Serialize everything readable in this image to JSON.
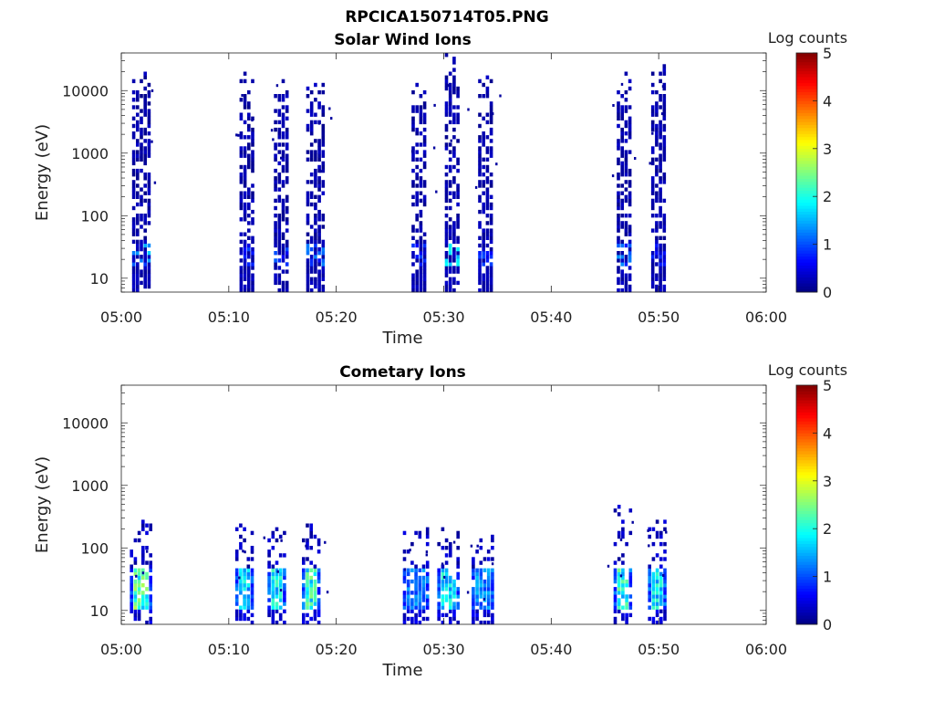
{
  "figure_title": "RPCICA150714T05.PNG",
  "colormap": "jet",
  "chart_data": [
    {
      "type": "heatmap",
      "title": "Solar Wind Ions",
      "xlabel": "Time",
      "ylabel": "Energy (eV)",
      "x_ticks": [
        "05:00",
        "05:10",
        "05:20",
        "05:30",
        "05:40",
        "05:50",
        "06:00"
      ],
      "xlim_minutes": [
        0,
        60
      ],
      "y_scale": "log",
      "y_ticks": [
        10,
        100,
        1000,
        10000
      ],
      "ylim": [
        6,
        40000
      ],
      "colorbar": {
        "label": "Log counts",
        "ticks": [
          0,
          1,
          2,
          3,
          4,
          5
        ],
        "range": [
          0,
          5
        ]
      },
      "bursts": [
        {
          "start_min": 1.0,
          "end_min": 2.8,
          "emax": 25000,
          "low_log_counts": 1.8
        },
        {
          "start_min": 11.0,
          "end_min": 12.5,
          "emax": 18000,
          "low_log_counts": 1.0
        },
        {
          "start_min": 14.2,
          "end_min": 15.6,
          "emax": 26000,
          "low_log_counts": 1.1
        },
        {
          "start_min": 17.2,
          "end_min": 18.9,
          "emax": 15000,
          "low_log_counts": 1.3
        },
        {
          "start_min": 27.0,
          "end_min": 28.6,
          "emax": 14000,
          "low_log_counts": 1.0
        },
        {
          "start_min": 30.1,
          "end_min": 31.7,
          "emax": 35000,
          "low_log_counts": 2.0
        },
        {
          "start_min": 33.2,
          "end_min": 34.8,
          "emax": 26000,
          "low_log_counts": 1.0
        },
        {
          "start_min": 46.1,
          "end_min": 47.6,
          "emax": 22000,
          "low_log_counts": 1.4
        },
        {
          "start_min": 49.3,
          "end_min": 50.8,
          "emax": 30000,
          "low_log_counts": 0.8
        }
      ]
    },
    {
      "type": "heatmap",
      "title": "Cometary Ions",
      "xlabel": "Time",
      "ylabel": "Energy (eV)",
      "x_ticks": [
        "05:00",
        "05:10",
        "05:20",
        "05:30",
        "05:40",
        "05:50",
        "06:00"
      ],
      "xlim_minutes": [
        0,
        60
      ],
      "y_scale": "log",
      "y_ticks": [
        10,
        100,
        1000,
        10000
      ],
      "ylim": [
        6,
        40000
      ],
      "colorbar": {
        "label": "Log counts",
        "ticks": [
          0,
          1,
          2,
          3,
          4,
          5
        ],
        "range": [
          0,
          5
        ]
      },
      "bursts": [
        {
          "start_min": 0.8,
          "end_min": 2.8,
          "emax": 250,
          "peak_log_counts": 2.8
        },
        {
          "start_min": 10.6,
          "end_min": 12.3,
          "emax": 220,
          "peak_log_counts": 2.1
        },
        {
          "start_min": 13.6,
          "end_min": 15.4,
          "emax": 200,
          "peak_log_counts": 2.3
        },
        {
          "start_min": 16.8,
          "end_min": 18.6,
          "emax": 220,
          "peak_log_counts": 2.6
        },
        {
          "start_min": 26.2,
          "end_min": 28.6,
          "emax": 200,
          "peak_log_counts": 1.5
        },
        {
          "start_min": 29.4,
          "end_min": 31.6,
          "emax": 200,
          "peak_log_counts": 2.2
        },
        {
          "start_min": 32.6,
          "end_min": 34.8,
          "emax": 150,
          "peak_log_counts": 1.6
        },
        {
          "start_min": 45.8,
          "end_min": 47.6,
          "emax": 450,
          "peak_log_counts": 2.5
        },
        {
          "start_min": 49.0,
          "end_min": 50.8,
          "emax": 280,
          "peak_log_counts": 2.2
        }
      ]
    }
  ]
}
